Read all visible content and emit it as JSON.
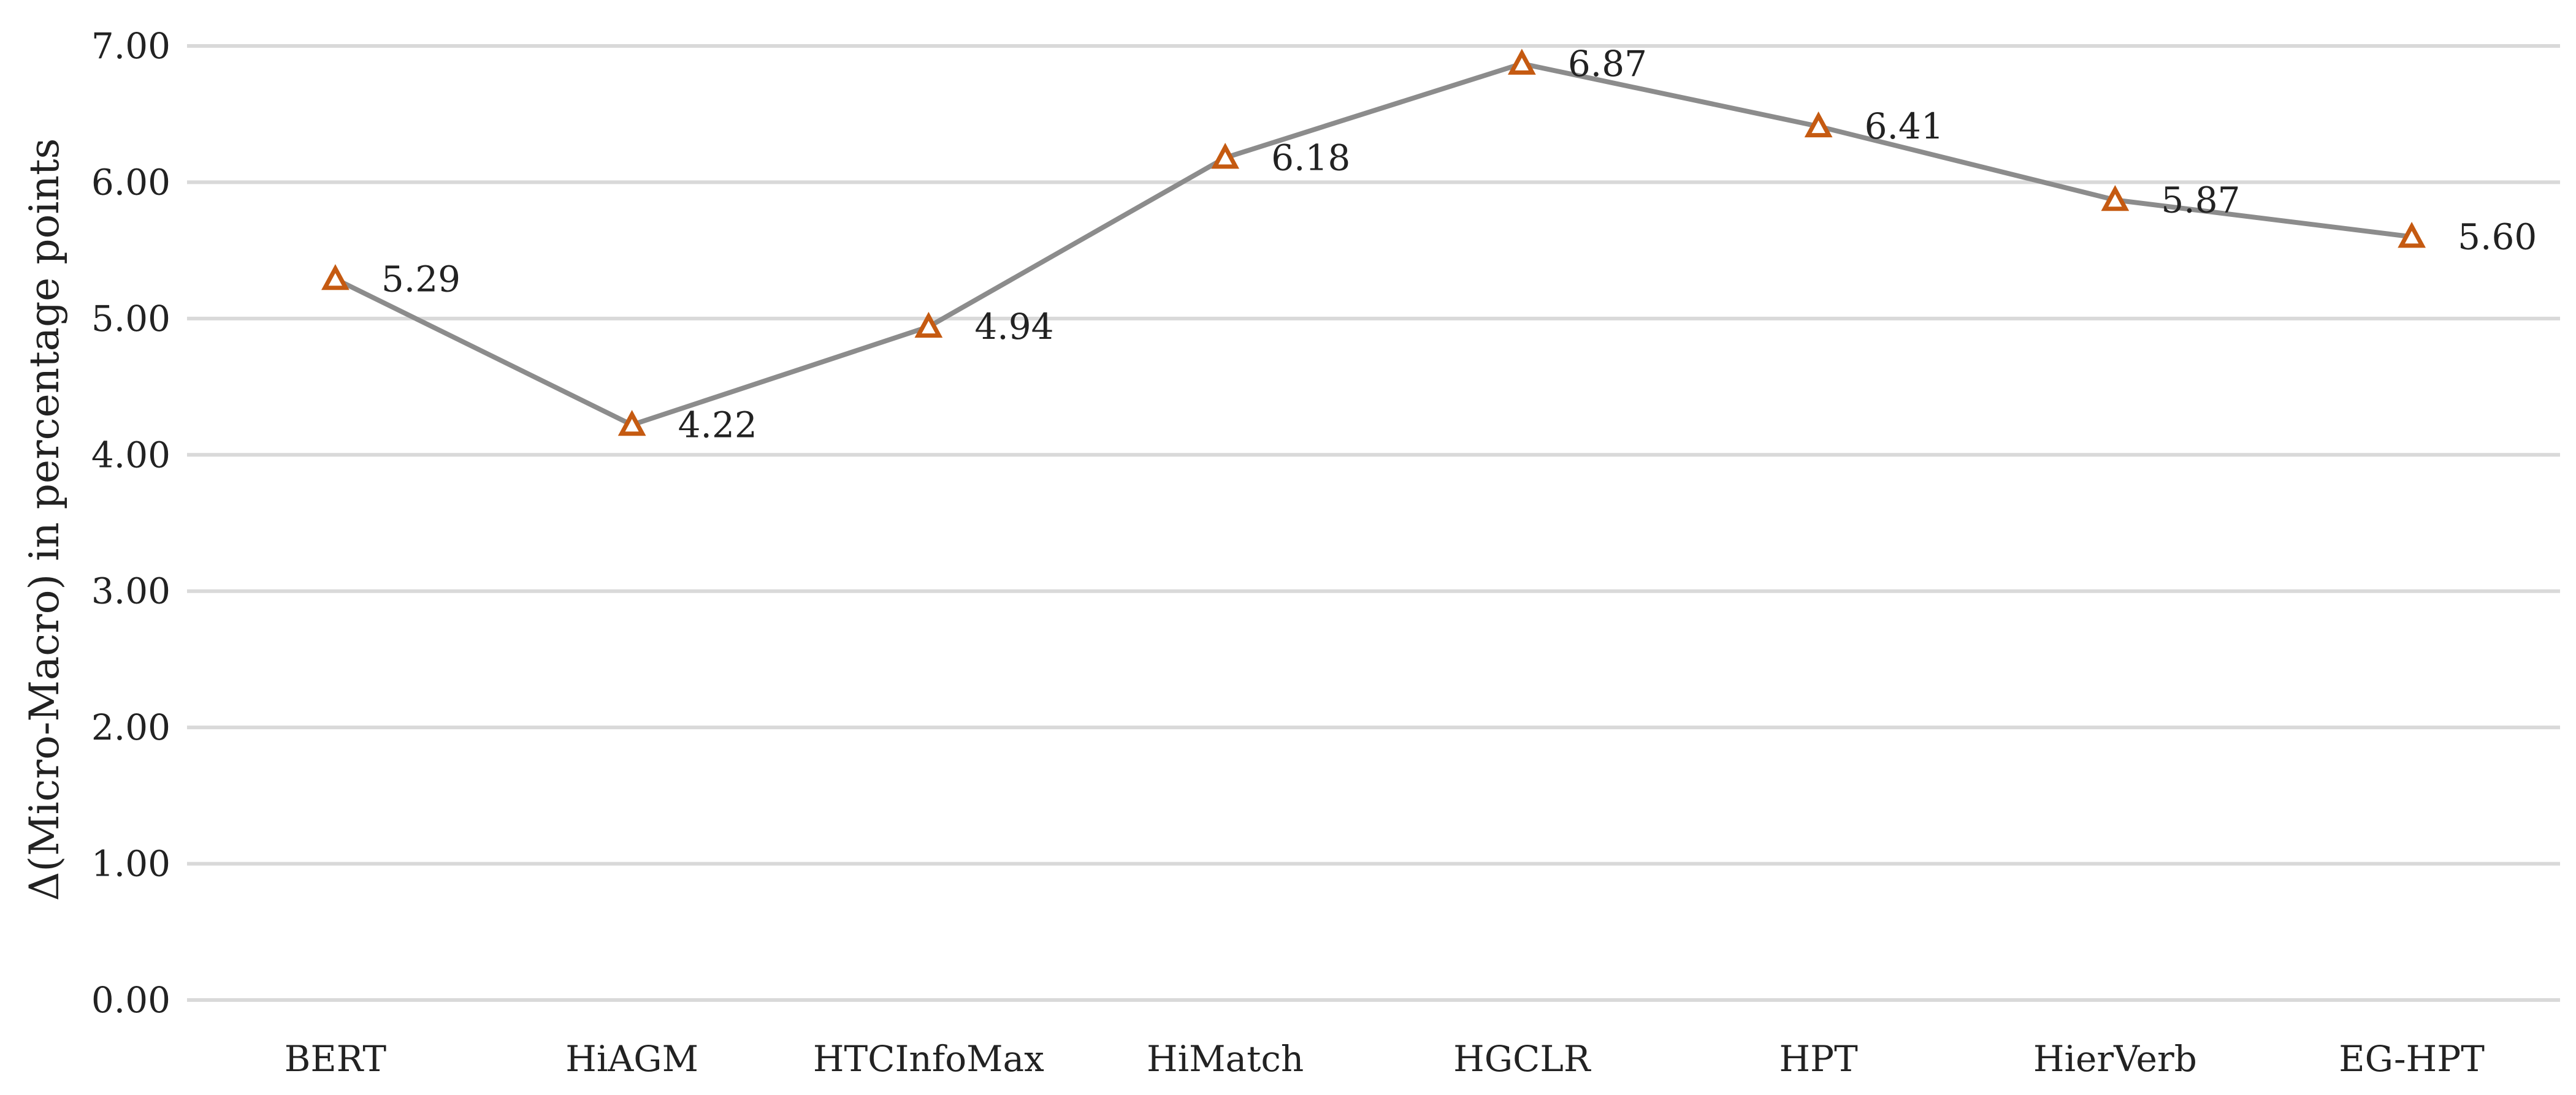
{
  "chart_data": {
    "type": "line",
    "categories": [
      "BERT",
      "HiAGM",
      "HTCInfoMax",
      "HiMatch",
      "HGCLR",
      "HPT",
      "HierVerb",
      "EG-HPT"
    ],
    "values": [
      5.29,
      4.22,
      4.94,
      6.18,
      6.87,
      6.41,
      5.87,
      5.6
    ],
    "value_labels": [
      "5.29",
      "4.22",
      "4.94",
      "6.18",
      "6.87",
      "6.41",
      "5.87",
      "5.60"
    ],
    "ylabel": "Δ(Micro-Macro) in percentage points",
    "xlabel": "",
    "title": "",
    "ylim": [
      0,
      7
    ],
    "yticks": [
      "0.00",
      "1.00",
      "2.00",
      "3.00",
      "4.00",
      "5.00",
      "6.00",
      "7.00"
    ],
    "grid": true,
    "legend": "none",
    "marker": "triangle-open",
    "colors": {
      "line": "#8c8c8c",
      "marker": "#c55a11",
      "grid": "#d9d9d9",
      "text": "#222222"
    }
  }
}
